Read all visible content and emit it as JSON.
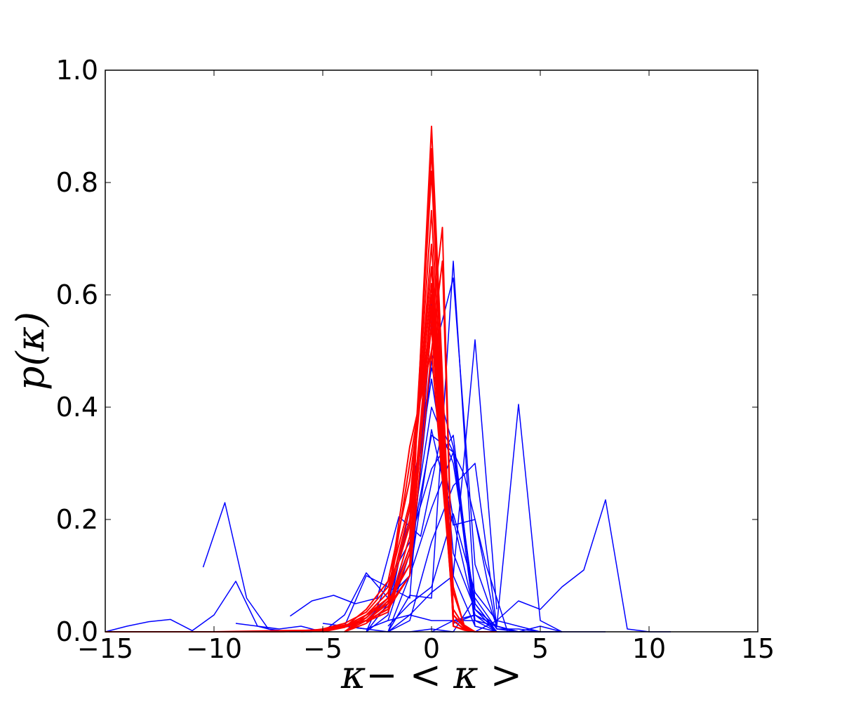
{
  "chart_data": {
    "type": "line",
    "title": "",
    "xlabel": "κ− < κ >",
    "ylabel": "p(κ)",
    "xlim": [
      -15,
      15
    ],
    "ylim": [
      0,
      1
    ],
    "grid": false,
    "legend": "none",
    "xticks": [
      -15,
      -10,
      -5,
      0,
      5,
      10,
      15
    ],
    "xtick_labels": [
      "−15",
      "−10",
      "−5",
      "0",
      "5",
      "10",
      "15"
    ],
    "yticks": [
      0,
      0.2,
      0.4,
      0.6,
      0.8,
      1.0
    ],
    "ytick_labels": [
      "0.0",
      "0.2",
      "0.4",
      "0.6",
      "0.8",
      "1.0"
    ],
    "colors": {
      "blue": "#0000ff",
      "red": "#ff0000"
    },
    "series": [
      {
        "color": "blue",
        "x": [
          -10.5,
          -9.5,
          -8.5,
          -7.5,
          -6.5,
          -5.5
        ],
        "y": [
          0.115,
          0.23,
          0.06,
          0.005,
          0.0,
          0.0
        ]
      },
      {
        "color": "blue",
        "x": [
          -15,
          -14,
          -13,
          -12,
          -11,
          -10,
          -9,
          -8,
          -7
        ],
        "y": [
          0.0,
          0.01,
          0.018,
          0.022,
          0.002,
          0.03,
          0.09,
          0.01,
          0.0
        ]
      },
      {
        "color": "blue",
        "x": [
          -6.5,
          -5.5,
          -4.5,
          -3.5,
          -2.5,
          -1.5,
          -0.5,
          0.5,
          1.5,
          2.5,
          3.5
        ],
        "y": [
          0.028,
          0.055,
          0.065,
          0.05,
          0.06,
          0.205,
          0.17,
          0.36,
          0.28,
          0.12,
          0.0
        ]
      },
      {
        "color": "blue",
        "x": [
          -5,
          -4,
          -3,
          -2,
          -1,
          0,
          1,
          2,
          3
        ],
        "y": [
          0.0,
          0.01,
          0.1,
          0.08,
          0.06,
          0.555,
          0.14,
          0.04,
          0.0
        ]
      },
      {
        "color": "blue",
        "x": [
          -5,
          -4,
          -3,
          -2,
          -1,
          0,
          1,
          2
        ],
        "y": [
          0.0,
          0.03,
          0.105,
          0.06,
          0.1,
          0.59,
          0.1,
          0.01
        ]
      },
      {
        "color": "blue",
        "x": [
          -4,
          -3,
          -2,
          -1,
          0,
          1,
          2,
          3,
          4
        ],
        "y": [
          0.0,
          0.02,
          0.06,
          0.1,
          0.48,
          0.63,
          0.12,
          0.01,
          0.0
        ]
      },
      {
        "color": "blue",
        "x": [
          -3,
          -2,
          -1,
          0,
          1,
          2,
          3
        ],
        "y": [
          0.02,
          0.05,
          0.15,
          0.4,
          0.3,
          0.05,
          0.0
        ]
      },
      {
        "color": "blue",
        "x": [
          -3,
          -2,
          -1,
          0,
          1,
          2,
          3,
          4
        ],
        "y": [
          0.0,
          0.03,
          0.22,
          0.47,
          0.33,
          0.04,
          0.01,
          0.0
        ]
      },
      {
        "color": "blue",
        "x": [
          -3,
          -2,
          -1,
          0,
          1,
          2,
          3
        ],
        "y": [
          0.0,
          0.05,
          0.2,
          0.45,
          0.2,
          0.03,
          0.0
        ]
      },
      {
        "color": "blue",
        "x": [
          -2,
          -1,
          0,
          1,
          2,
          3,
          4
        ],
        "y": [
          0.02,
          0.14,
          0.35,
          0.32,
          0.04,
          0.0,
          0.0
        ]
      },
      {
        "color": "blue",
        "x": [
          -2,
          -1,
          0,
          1,
          2,
          3
        ],
        "y": [
          0.0,
          0.065,
          0.06,
          0.66,
          0.05,
          0.0
        ]
      },
      {
        "color": "blue",
        "x": [
          -2,
          -1,
          0,
          1,
          2,
          3
        ],
        "y": [
          0.0,
          0.03,
          0.07,
          0.1,
          0.52,
          0.04
        ]
      },
      {
        "color": "blue",
        "x": [
          -3,
          -2,
          -1,
          0,
          1,
          2,
          3
        ],
        "y": [
          0.0,
          0.09,
          0.16,
          0.29,
          0.35,
          0.02,
          0.0
        ]
      },
      {
        "color": "blue",
        "x": [
          -2,
          -1,
          0,
          1,
          2,
          3,
          4,
          5
        ],
        "y": [
          0.0,
          0.02,
          0.16,
          0.26,
          0.3,
          0.01,
          0.0,
          0.0
        ]
      },
      {
        "color": "blue",
        "x": [
          -1,
          0,
          1,
          2,
          3,
          4,
          5
        ],
        "y": [
          0.1,
          0.22,
          0.32,
          0.01,
          0.0,
          0.0,
          0.0
        ]
      },
      {
        "color": "blue",
        "x": [
          -2,
          -1,
          0,
          1,
          2,
          3,
          4
        ],
        "y": [
          0.0,
          0.1,
          0.36,
          0.19,
          0.2,
          0.005,
          0.0
        ]
      },
      {
        "color": "blue",
        "x": [
          -2,
          -1,
          0,
          1,
          2,
          3,
          4,
          5,
          6
        ],
        "y": [
          0.01,
          0.05,
          0.08,
          0.21,
          0.07,
          0.02,
          0.01,
          0.0,
          0.0
        ]
      },
      {
        "color": "blue",
        "x": [
          0,
          1,
          2,
          3,
          4,
          5,
          6,
          7,
          8
        ],
        "y": [
          0.0,
          0.02,
          0.02,
          0.01,
          0.0,
          0.0,
          0.0,
          0.0,
          0.0
        ]
      },
      {
        "color": "blue",
        "x": [
          0,
          1,
          2,
          3,
          4,
          5,
          6
        ],
        "y": [
          0.0,
          0.0,
          0.06,
          0.005,
          0.005,
          0.0,
          0.0
        ]
      },
      {
        "color": "blue",
        "x": [
          1,
          2,
          3,
          4,
          5,
          6
        ],
        "y": [
          0.015,
          0.03,
          0.01,
          0.405,
          0.02,
          0.0
        ]
      },
      {
        "color": "blue",
        "x": [
          2,
          3,
          4,
          5,
          6,
          7,
          8,
          9,
          10,
          11
        ],
        "y": [
          0.0,
          0.02,
          0.055,
          0.04,
          0.08,
          0.11,
          0.235,
          0.005,
          0.0,
          0.0
        ]
      },
      {
        "color": "blue",
        "x": [
          -5,
          -4,
          -3,
          -2,
          -1,
          0,
          1,
          2,
          3,
          4,
          5,
          6
        ],
        "y": [
          0.015,
          0.01,
          0.005,
          0.02,
          0.03,
          0.02,
          0.02,
          0.03,
          0.01,
          0.0,
          0.01,
          0.0
        ]
      },
      {
        "color": "blue",
        "x": [
          -9,
          -8,
          -7,
          -6,
          -5,
          -4,
          -3,
          -2,
          -1,
          0,
          1
        ],
        "y": [
          0.015,
          0.01,
          0.005,
          0.01,
          0.0,
          0.01,
          0.005,
          0.0,
          0.0,
          0.005,
          0.0
        ]
      },
      {
        "color": "red",
        "x": [
          -15,
          -10,
          -7,
          -5,
          -4,
          -3,
          -2,
          -1,
          0,
          1,
          1.5,
          2,
          3
        ],
        "y": [
          0.0,
          0.0,
          0.002,
          0.003,
          0.008,
          0.02,
          0.04,
          0.1,
          0.9,
          0.01,
          0.003,
          0.0,
          0.0
        ]
      },
      {
        "color": "red",
        "x": [
          -10,
          -7,
          -5,
          -4,
          -3,
          -2,
          -1,
          0,
          1,
          1.5,
          2,
          3
        ],
        "y": [
          0.0,
          0.0,
          0.002,
          0.01,
          0.02,
          0.05,
          0.12,
          0.86,
          0.02,
          0.005,
          0.0,
          0.0
        ]
      },
      {
        "color": "red",
        "x": [
          -8,
          -6,
          -5,
          -4,
          -3,
          -2,
          -1,
          0,
          1,
          1.5,
          2
        ],
        "y": [
          0.0,
          0.002,
          0.004,
          0.012,
          0.02,
          0.04,
          0.17,
          0.82,
          0.01,
          0.004,
          0.0
        ]
      },
      {
        "color": "red",
        "x": [
          -7,
          -5,
          -4,
          -3,
          -2,
          -1,
          0,
          1,
          1.5,
          2
        ],
        "y": [
          0.0,
          0.004,
          0.01,
          0.025,
          0.06,
          0.19,
          0.75,
          0.02,
          0.005,
          0.0
        ]
      },
      {
        "color": "red",
        "x": [
          -6,
          -5,
          -4,
          -3,
          -2,
          -1,
          0,
          1,
          1.5,
          2
        ],
        "y": [
          0.0,
          0.003,
          0.01,
          0.03,
          0.07,
          0.2,
          0.69,
          0.03,
          0.01,
          0.0
        ]
      },
      {
        "color": "red",
        "x": [
          -6,
          -5,
          -4,
          -3,
          -2,
          -1,
          0,
          1,
          1.5,
          2
        ],
        "y": [
          0.0,
          0.005,
          0.015,
          0.035,
          0.08,
          0.23,
          0.65,
          0.03,
          0.008,
          0.0
        ]
      },
      {
        "color": "red",
        "x": [
          -5,
          -4,
          -3,
          -2,
          -1,
          0,
          1,
          1.5,
          2
        ],
        "y": [
          0.0,
          0.01,
          0.03,
          0.06,
          0.22,
          0.62,
          0.02,
          0.005,
          0.0
        ]
      },
      {
        "color": "red",
        "x": [
          -5,
          -4,
          -3,
          -2,
          -1,
          0,
          1,
          1.5,
          2
        ],
        "y": [
          0.0,
          0.008,
          0.04,
          0.09,
          0.27,
          0.57,
          0.04,
          0.01,
          0.0
        ]
      },
      {
        "color": "red",
        "x": [
          -4,
          -3,
          -2,
          -1,
          0,
          1,
          1.5,
          2
        ],
        "y": [
          0.0,
          0.03,
          0.05,
          0.3,
          0.54,
          0.03,
          0.008,
          0.0
        ]
      },
      {
        "color": "red",
        "x": [
          -4,
          -3,
          -2,
          -1,
          0,
          1,
          1.5,
          2
        ],
        "y": [
          0.0,
          0.025,
          0.06,
          0.33,
          0.5,
          0.04,
          0.01,
          0.0
        ]
      },
      {
        "color": "red",
        "x": [
          -4,
          -3,
          -2,
          -1,
          0,
          0.5,
          1,
          1.5,
          2
        ],
        "y": [
          0.0,
          0.02,
          0.055,
          0.12,
          0.55,
          0.72,
          0.02,
          0.005,
          0.0
        ]
      },
      {
        "color": "red",
        "x": [
          -4,
          -3,
          -2,
          -1,
          0,
          0.5,
          1,
          1.5,
          2
        ],
        "y": [
          0.0,
          0.015,
          0.045,
          0.1,
          0.5,
          0.66,
          0.03,
          0.008,
          0.0
        ]
      },
      {
        "color": "red",
        "x": [
          -3,
          -2,
          -1,
          0,
          1,
          1.5,
          2
        ],
        "y": [
          0.02,
          0.04,
          0.15,
          0.6,
          0.08,
          0.01,
          0.0
        ]
      },
      {
        "color": "red",
        "x": [
          -3,
          -2,
          -1,
          0,
          1,
          1.5,
          2
        ],
        "y": [
          0.018,
          0.035,
          0.14,
          0.58,
          0.07,
          0.012,
          0.0
        ]
      }
    ]
  }
}
